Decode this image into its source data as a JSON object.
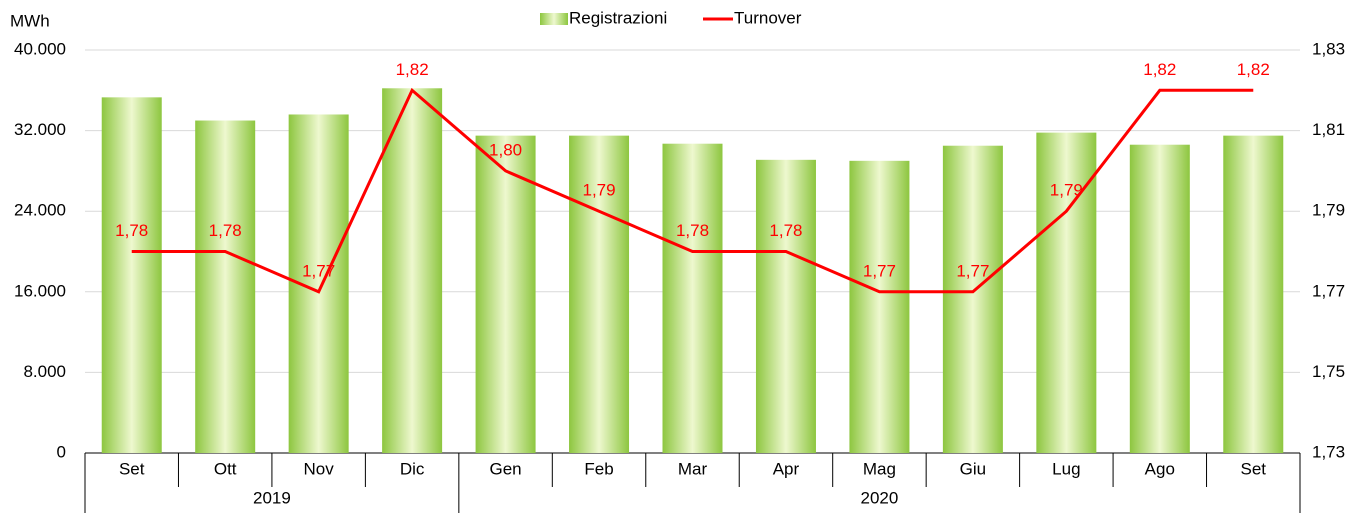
{
  "chart_data": {
    "type": "bar-line",
    "y_axis_label": "MWh",
    "category_groups": [
      {
        "label": "2019",
        "categories": [
          "Set",
          "Ott",
          "Nov",
          "Dic"
        ]
      },
      {
        "label": "2020",
        "categories": [
          "Gen",
          "Feb",
          "Mar",
          "Apr",
          "Mag",
          "Giu",
          "Lug",
          "Ago",
          "Set"
        ]
      }
    ],
    "series": [
      {
        "name": "Registrazioni",
        "type": "bar",
        "color": "#8dc63f",
        "values": [
          35300,
          33000,
          33600,
          36200,
          31500,
          31500,
          30700,
          29100,
          29000,
          30500,
          31800,
          30600,
          31500
        ]
      },
      {
        "name": "Turnover",
        "type": "line",
        "axis": "y2",
        "color": "#ff0000",
        "values": [
          1.78,
          1.78,
          1.77,
          1.82,
          1.8,
          1.79,
          1.78,
          1.78,
          1.77,
          1.77,
          1.79,
          1.82,
          1.82
        ],
        "value_labels": [
          "1,78",
          "1,78",
          "1,77",
          "1,82",
          "1,80",
          "1,79",
          "1,78",
          "1,78",
          "1,77",
          "1,77",
          "1,79",
          "1,82",
          "1,82"
        ]
      }
    ],
    "ylim": [
      0,
      40000
    ],
    "yticks": [
      0,
      {
        "value": 8000,
        "label": "8.000"
      },
      {
        "value": 16000,
        "label": "16.000"
      },
      {
        "value": 24000,
        "label": "24.000"
      },
      {
        "value": 32000,
        "label": "32.000"
      },
      {
        "value": 40000,
        "label": "40.000"
      }
    ],
    "y2lim": [
      1.73,
      1.83
    ],
    "y2ticks": [
      {
        "value": 1.73,
        "label": "1,73"
      },
      {
        "value": 1.75,
        "label": "1,75"
      },
      {
        "value": 1.77,
        "label": "1,77"
      },
      {
        "value": 1.79,
        "label": "1,79"
      },
      {
        "value": 1.81,
        "label": "1,81"
      },
      {
        "value": 1.83,
        "label": "1,83"
      }
    ],
    "grid": true,
    "legend": "top"
  }
}
